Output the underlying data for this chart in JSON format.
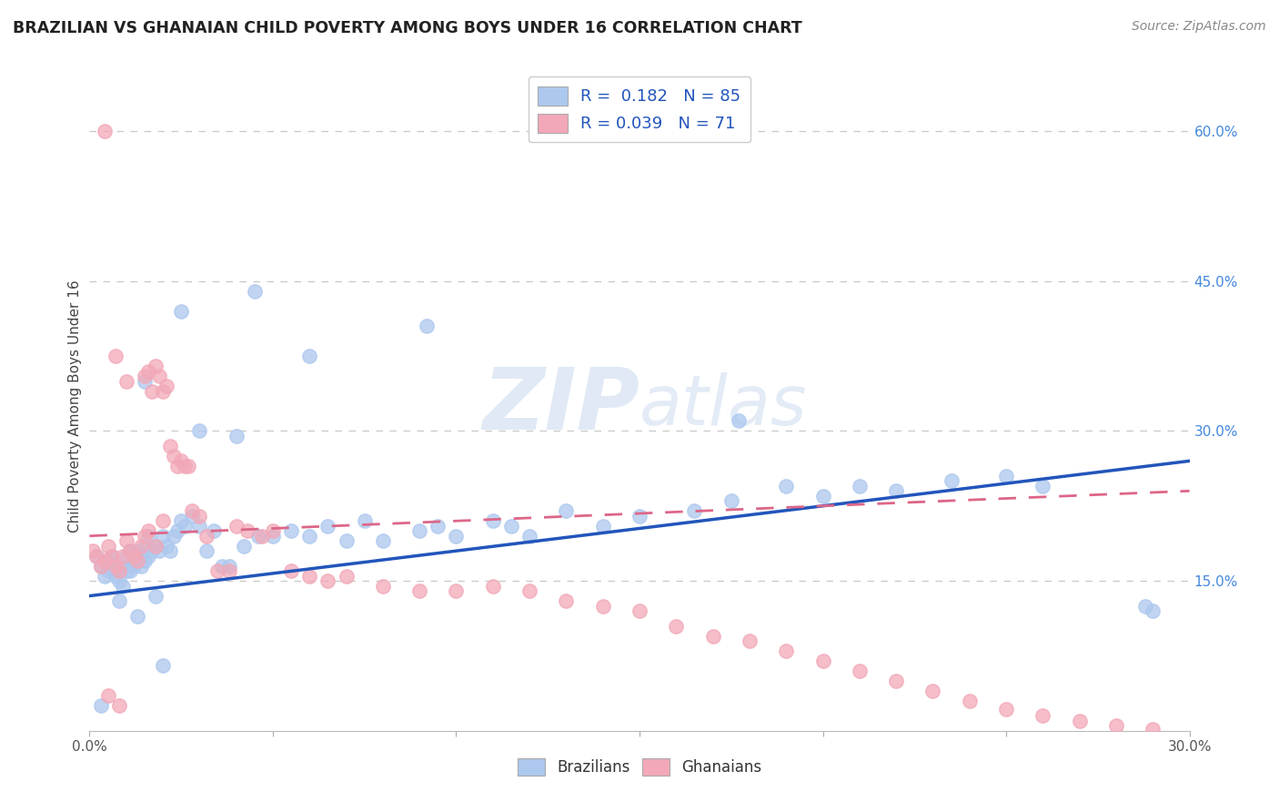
{
  "title": "BRAZILIAN VS GHANAIAN CHILD POVERTY AMONG BOYS UNDER 16 CORRELATION CHART",
  "source": "Source: ZipAtlas.com",
  "ylabel": "Child Poverty Among Boys Under 16",
  "xlim": [
    0.0,
    0.3
  ],
  "ylim": [
    0.0,
    0.65
  ],
  "xticks": [
    0.0,
    0.05,
    0.1,
    0.15,
    0.2,
    0.25,
    0.3
  ],
  "xtick_labels": [
    "0.0%",
    "",
    "",
    "",
    "",
    "",
    "30.0%"
  ],
  "ytick_labels_right": [
    "60.0%",
    "45.0%",
    "30.0%",
    "15.0%"
  ],
  "ytick_vals_right": [
    0.6,
    0.45,
    0.3,
    0.15
  ],
  "brazil_R": 0.182,
  "brazil_N": 85,
  "ghana_R": 0.039,
  "ghana_N": 71,
  "brazil_color": "#adc8ee",
  "ghana_color": "#f2a8b8",
  "brazil_line_color": "#2255bb",
  "ghana_line_color": "#dd6688",
  "background_color": "#ffffff",
  "grid_color": "#c8c8c8",
  "brazil_line": [
    0.135,
    0.27
  ],
  "ghana_line": [
    0.195,
    0.24
  ],
  "brazil_scatter_x": [
    0.002,
    0.003,
    0.004,
    0.005,
    0.005,
    0.006,
    0.006,
    0.007,
    0.007,
    0.008,
    0.008,
    0.009,
    0.009,
    0.01,
    0.01,
    0.011,
    0.011,
    0.012,
    0.012,
    0.013,
    0.013,
    0.014,
    0.014,
    0.015,
    0.015,
    0.016,
    0.016,
    0.017,
    0.018,
    0.019,
    0.02,
    0.021,
    0.022,
    0.023,
    0.024,
    0.025,
    0.026,
    0.028,
    0.03,
    0.032,
    0.034,
    0.036,
    0.038,
    0.042,
    0.046,
    0.05,
    0.055,
    0.06,
    0.065,
    0.07,
    0.075,
    0.08,
    0.09,
    0.095,
    0.1,
    0.11,
    0.115,
    0.12,
    0.13,
    0.14,
    0.15,
    0.165,
    0.175,
    0.19,
    0.2,
    0.21,
    0.22,
    0.235,
    0.25,
    0.26,
    0.29,
    0.045,
    0.092,
    0.177,
    0.288,
    0.04,
    0.06,
    0.025,
    0.03,
    0.015,
    0.008,
    0.013,
    0.018,
    0.003,
    0.02
  ],
  "brazil_scatter_y": [
    0.175,
    0.165,
    0.155,
    0.16,
    0.17,
    0.165,
    0.175,
    0.155,
    0.165,
    0.15,
    0.16,
    0.145,
    0.165,
    0.16,
    0.175,
    0.16,
    0.18,
    0.175,
    0.165,
    0.17,
    0.18,
    0.165,
    0.175,
    0.17,
    0.185,
    0.175,
    0.195,
    0.18,
    0.185,
    0.18,
    0.195,
    0.185,
    0.18,
    0.195,
    0.2,
    0.21,
    0.205,
    0.215,
    0.205,
    0.18,
    0.2,
    0.165,
    0.165,
    0.185,
    0.195,
    0.195,
    0.2,
    0.195,
    0.205,
    0.19,
    0.21,
    0.19,
    0.2,
    0.205,
    0.195,
    0.21,
    0.205,
    0.195,
    0.22,
    0.205,
    0.215,
    0.22,
    0.23,
    0.245,
    0.235,
    0.245,
    0.24,
    0.25,
    0.255,
    0.245,
    0.12,
    0.44,
    0.405,
    0.31,
    0.125,
    0.295,
    0.375,
    0.42,
    0.3,
    0.35,
    0.13,
    0.115,
    0.135,
    0.025,
    0.065
  ],
  "ghana_scatter_x": [
    0.001,
    0.002,
    0.003,
    0.004,
    0.005,
    0.006,
    0.007,
    0.008,
    0.009,
    0.01,
    0.011,
    0.012,
    0.013,
    0.014,
    0.015,
    0.016,
    0.016,
    0.017,
    0.018,
    0.019,
    0.02,
    0.02,
    0.021,
    0.022,
    0.023,
    0.024,
    0.025,
    0.026,
    0.027,
    0.028,
    0.03,
    0.032,
    0.035,
    0.038,
    0.04,
    0.043,
    0.047,
    0.05,
    0.055,
    0.06,
    0.065,
    0.07,
    0.08,
    0.09,
    0.1,
    0.11,
    0.12,
    0.13,
    0.14,
    0.15,
    0.16,
    0.17,
    0.18,
    0.19,
    0.2,
    0.21,
    0.22,
    0.23,
    0.24,
    0.25,
    0.26,
    0.27,
    0.28,
    0.29,
    0.007,
    0.01,
    0.015,
    0.004,
    0.018,
    0.005,
    0.008
  ],
  "ghana_scatter_y": [
    0.18,
    0.175,
    0.165,
    0.17,
    0.185,
    0.175,
    0.165,
    0.16,
    0.175,
    0.19,
    0.18,
    0.175,
    0.17,
    0.185,
    0.195,
    0.36,
    0.2,
    0.34,
    0.365,
    0.355,
    0.21,
    0.34,
    0.345,
    0.285,
    0.275,
    0.265,
    0.27,
    0.265,
    0.265,
    0.22,
    0.215,
    0.195,
    0.16,
    0.16,
    0.205,
    0.2,
    0.195,
    0.2,
    0.16,
    0.155,
    0.15,
    0.155,
    0.145,
    0.14,
    0.14,
    0.145,
    0.14,
    0.13,
    0.125,
    0.12,
    0.105,
    0.095,
    0.09,
    0.08,
    0.07,
    0.06,
    0.05,
    0.04,
    0.03,
    0.022,
    0.015,
    0.01,
    0.005,
    0.002,
    0.375,
    0.35,
    0.355,
    0.6,
    0.185,
    0.035,
    0.025
  ]
}
